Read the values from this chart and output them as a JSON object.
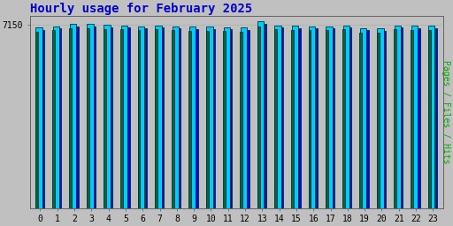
{
  "title": "Hourly usage for February 2025",
  "title_color": "#0000cc",
  "title_fontsize": 10,
  "bg_color": "#c0c0c0",
  "plot_bg_color": "#c0c0c0",
  "hours": [
    0,
    1,
    2,
    3,
    4,
    5,
    6,
    7,
    8,
    9,
    10,
    11,
    12,
    13,
    14,
    15,
    16,
    17,
    18,
    19,
    20,
    21,
    22,
    23
  ],
  "hits": [
    7050,
    7100,
    7180,
    7200,
    7160,
    7130,
    7100,
    7130,
    7100,
    7090,
    7070,
    7060,
    7050,
    7280,
    7130,
    7110,
    7090,
    7090,
    7130,
    7020,
    7010,
    7130,
    7110,
    7120
  ],
  "files": [
    6950,
    7000,
    7080,
    7100,
    7060,
    7040,
    7010,
    7040,
    7010,
    6990,
    6980,
    6970,
    6960,
    7180,
    7040,
    7020,
    7000,
    7000,
    7040,
    6930,
    6920,
    7040,
    7020,
    7030
  ],
  "pages": [
    6870,
    6930,
    7000,
    7030,
    6990,
    6970,
    6940,
    6970,
    6940,
    6920,
    6910,
    6900,
    6890,
    7100,
    6970,
    6950,
    6930,
    6930,
    6970,
    6860,
    6850,
    6970,
    6950,
    6960
  ],
  "ylim_min": 0,
  "ylim_max": 7500,
  "ytick_val": 7150,
  "ytick_label": "7150",
  "right_ylabel": "Pages / Files / Hits",
  "color_hits": "#00ccff",
  "color_files": "#0000ee",
  "color_pages": "#006644",
  "edge_color": "#003333",
  "ylabel_color": "#00aa00",
  "grid_color": "#b0b0b0"
}
